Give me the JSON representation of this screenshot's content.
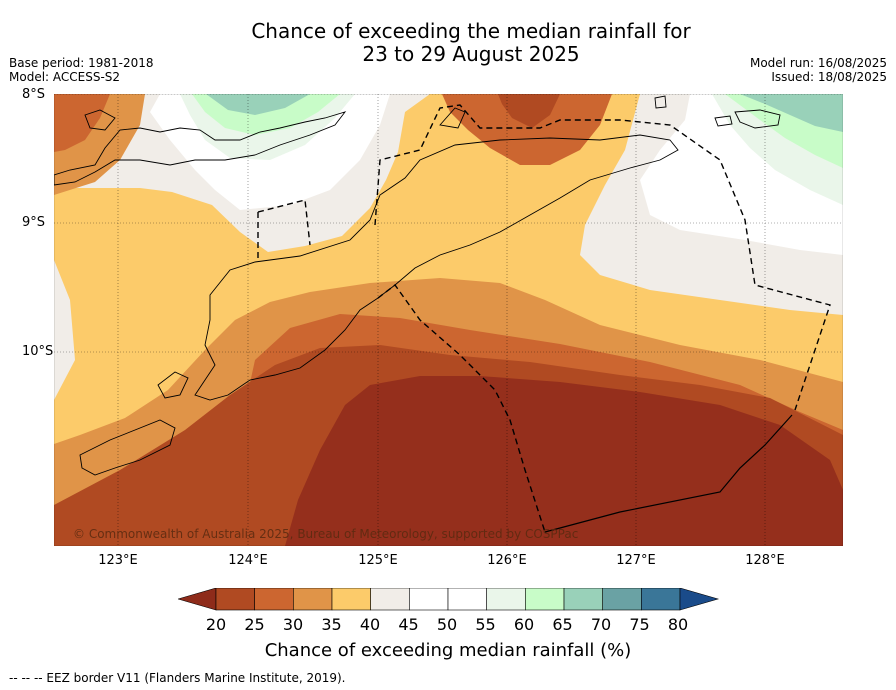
{
  "title_line1": "Chance of exceeding the median rainfall for",
  "title_line2": "23 to 29 August 2025",
  "meta_left": [
    "Base period: 1981-2018",
    "Model: ACCESS-S2"
  ],
  "meta_right": [
    "Model run: 16/08/2025",
    "Issued: 18/08/2025"
  ],
  "lat_labels": [
    "8°S",
    "9°S",
    "10°S"
  ],
  "lon_labels": [
    "123°E",
    "124°E",
    "125°E",
    "126°E",
    "127°E",
    "128°E"
  ],
  "copyright": "© Commonwealth of Australia 2025, Bureau of Meteorology, supported by COSPPac",
  "colorbar": {
    "ticks": [
      "20",
      "25",
      "30",
      "35",
      "40",
      "45",
      "50",
      "55",
      "60",
      "65",
      "70",
      "75",
      "80"
    ],
    "title": "Chance of exceeding median rainfall (%)",
    "colors": [
      "#8e2b1a",
      "#b04a22",
      "#cc6630",
      "#e09448",
      "#fccb6a",
      "#f1ede8",
      "#ffffff",
      "#ffffff",
      "#eaf6ea",
      "#c8fcc8",
      "#99d1b9",
      "#6aa2a4",
      "#3a7698",
      "#1a4b8a"
    ]
  },
  "legend_footer": "--  --  -- EEZ border V11 (Flanders Marine Institute, 2019).",
  "colors": {
    "c20": "#8e2b1a",
    "c25": "#b04a22",
    "c30": "#cc6630",
    "c35": "#e09448",
    "c40": "#fccb6a",
    "c45": "#f1ede8",
    "c55": "#ffffff",
    "c60": "#eaf6ea",
    "c65": "#c8fcc8",
    "c70": "#99d1b9"
  }
}
